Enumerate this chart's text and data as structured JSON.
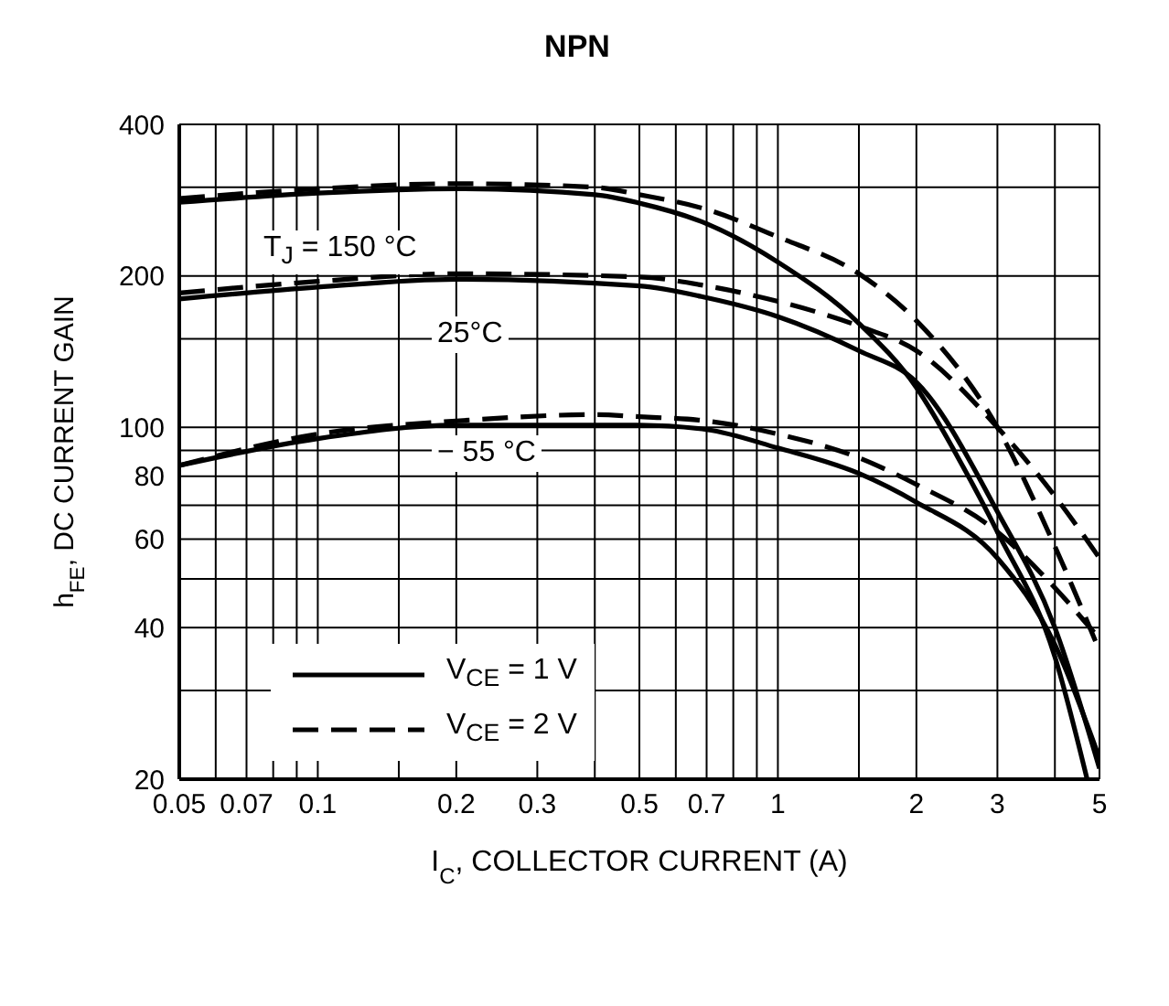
{
  "chart_data": {
    "type": "line",
    "title": "NPN",
    "xlabel": "I$_{C}$, COLLECTOR CURRENT (A)",
    "ylabel": "h$_{FE}$, DC CURRENT GAIN",
    "log": "xy",
    "grid": true,
    "legend": "bottom left",
    "marker": "none",
    "xlim": [
      0.05,
      5
    ],
    "ylim": [
      20,
      400
    ],
    "xticks": [
      0.05,
      {
        "value": 0.06,
        "label": null
      },
      0.07,
      {
        "value": 0.08,
        "label": null
      },
      {
        "value": 0.09,
        "label": null
      },
      0.1,
      {
        "value": 0.15,
        "label": null
      },
      0.2,
      0.3,
      {
        "value": 0.4,
        "label": null
      },
      0.5,
      {
        "value": 0.6,
        "label": null
      },
      0.7,
      {
        "value": 0.8,
        "label": null
      },
      {
        "value": 0.9,
        "label": null
      },
      1,
      {
        "value": 1.5,
        "label": null
      },
      2,
      3,
      {
        "value": 4,
        "label": null
      },
      5
    ],
    "yticks": [
      20,
      {
        "value": 30,
        "label": null
      },
      40,
      {
        "value": 50,
        "label": null
      },
      60,
      {
        "value": 70,
        "label": null
      },
      80,
      {
        "value": 90,
        "label": null
      },
      100,
      {
        "value": 150,
        "label": null
      },
      200,
      {
        "value": 300,
        "label": null
      },
      400
    ],
    "annotations": [
      "T$_{J}$ = 150 °C",
      "25°C",
      "− 55 °C"
    ],
    "series": [
      {
        "name": "V$_{CE}$ = 1 V",
        "color": "#000000",
        "line_style": "solid",
        "x": [
          0.05,
          0.1,
          0.2,
          0.4,
          0.5,
          0.7,
          1,
          1.5,
          2,
          2.5,
          3,
          4,
          4.7
        ],
        "values": [
          280,
          292,
          298,
          290,
          279,
          254,
          213,
          161,
          120,
          85,
          62,
          35,
          20
        ]
      },
      {
        "name": "V$_{CE}$ = 2 V",
        "color": "#000000",
        "line_style": "dashed",
        "x": [
          0.05,
          0.1,
          0.2,
          0.4,
          0.5,
          0.7,
          1,
          1.5,
          2,
          3,
          4,
          5
        ],
        "values": [
          285,
          298,
          305,
          300,
          290,
          271,
          239,
          202,
          163,
          100,
          58,
          36
        ]
      },
      {
        "color": "#000000",
        "line_style": "solid",
        "x": [
          0.05,
          0.1,
          0.2,
          0.5,
          0.7,
          1,
          1.5,
          2,
          3,
          4,
          5
        ],
        "values": [
          180,
          190,
          197,
          191,
          181,
          166,
          142,
          123,
          68,
          40,
          21
        ]
      },
      {
        "color": "#000000",
        "line_style": "dashed",
        "x": [
          0.05,
          0.1,
          0.2,
          0.5,
          0.7,
          1,
          1.5,
          2,
          3,
          4,
          5
        ],
        "values": [
          185,
          195,
          202,
          199,
          191,
          178,
          159,
          142,
          100,
          73,
          55
        ]
      },
      {
        "color": "#000000",
        "line_style": "solid",
        "x": [
          0.05,
          0.1,
          0.2,
          0.5,
          0.7,
          1,
          1.5,
          2,
          3,
          4,
          5
        ],
        "values": [
          84,
          95,
          101,
          101,
          99,
          91,
          81,
          71,
          55,
          37,
          22
        ]
      },
      {
        "color": "#000000",
        "line_style": "dashed",
        "x": [
          0.05,
          0.1,
          0.2,
          0.4,
          0.5,
          0.7,
          1,
          1.5,
          2,
          3,
          4,
          5
        ],
        "values": [
          84,
          97,
          103,
          106,
          105,
          103,
          97,
          87,
          77,
          62,
          48,
          38
        ]
      }
    ]
  }
}
